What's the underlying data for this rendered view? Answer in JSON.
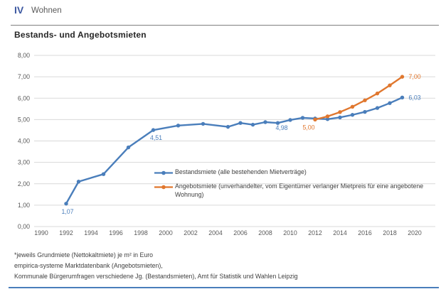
{
  "header": {
    "section_number": "IV",
    "section_title": "Wohnen"
  },
  "chart": {
    "title": "Bestands- und Angebotsmieten"
  },
  "chart_data": {
    "type": "line",
    "title": "Bestands- und Angebotsmieten",
    "xlabel": "",
    "ylabel": "",
    "ylim": [
      0,
      8
    ],
    "ytick_values": [
      0,
      1,
      2,
      3,
      4,
      5,
      6,
      7,
      8
    ],
    "ytick_labels": [
      "0,00",
      "1,00",
      "2,00",
      "3,00",
      "4,00",
      "5,00",
      "6,00",
      "7,00",
      "8,00"
    ],
    "xticks": [
      1990,
      1992,
      1994,
      1996,
      1998,
      2000,
      2002,
      2004,
      2006,
      2008,
      2010,
      2012,
      2014,
      2016,
      2018,
      2020
    ],
    "grid": true,
    "legend_position": "inside-bottom-right",
    "series": [
      {
        "id": "bestandsmiete",
        "name": "Bestandsmiete (alle bestehenden Mietverträge)",
        "color": "#4a7ebb",
        "points": [
          [
            1992,
            1.07
          ],
          [
            1993,
            2.1
          ],
          [
            1995,
            2.45
          ],
          [
            1997,
            3.7
          ],
          [
            1999,
            4.51
          ],
          [
            2001,
            4.72
          ],
          [
            2003,
            4.8
          ],
          [
            2005,
            4.66
          ],
          [
            2006,
            4.84
          ],
          [
            2007,
            4.76
          ],
          [
            2008,
            4.88
          ],
          [
            2009,
            4.84
          ],
          [
            2010,
            4.98
          ],
          [
            2011,
            5.08
          ],
          [
            2012,
            5.05
          ],
          [
            2013,
            5.02
          ],
          [
            2014,
            5.1
          ],
          [
            2015,
            5.22
          ],
          [
            2016,
            5.36
          ],
          [
            2017,
            5.54
          ],
          [
            2018,
            5.77
          ],
          [
            2019,
            6.03
          ]
        ],
        "labels": [
          {
            "year": 1992,
            "text": "1,07",
            "placement": "below",
            "dx": 2
          },
          {
            "year": 1999,
            "text": "4,51",
            "placement": "below",
            "dx": 4
          },
          {
            "year": 2010,
            "text": "4,98",
            "placement": "below",
            "dx": -12
          },
          {
            "year": 2019,
            "text": "6,03",
            "placement": "right",
            "dx": 0
          }
        ]
      },
      {
        "id": "angebotsmiete",
        "name": "Angebotsmiete (unverhandelter, vom Eigentümer verlanger Mietpreis für eine angebotene Wohnung)",
        "color": "#e0772e",
        "points": [
          [
            2012,
            5.0
          ],
          [
            2013,
            5.15
          ],
          [
            2014,
            5.35
          ],
          [
            2015,
            5.6
          ],
          [
            2016,
            5.9
          ],
          [
            2017,
            6.22
          ],
          [
            2018,
            6.6
          ],
          [
            2019,
            7.0
          ]
        ],
        "labels": [
          {
            "year": 2012,
            "text": "5,00",
            "placement": "below",
            "dx": -9
          },
          {
            "year": 2019,
            "text": "7,00",
            "placement": "right",
            "dx": 0
          }
        ]
      }
    ]
  },
  "footnotes": [
    "*jeweils Grundmiete (Nettokaltmiete) je m² in Euro",
    "empirica-systeme Marktdatenbank (Angebotsmieten),",
    "Kommunale Bürgerumfragen verschiedene Jg. (Bestandsmieten), Amt für Statistik und Wahlen Leipzig"
  ]
}
